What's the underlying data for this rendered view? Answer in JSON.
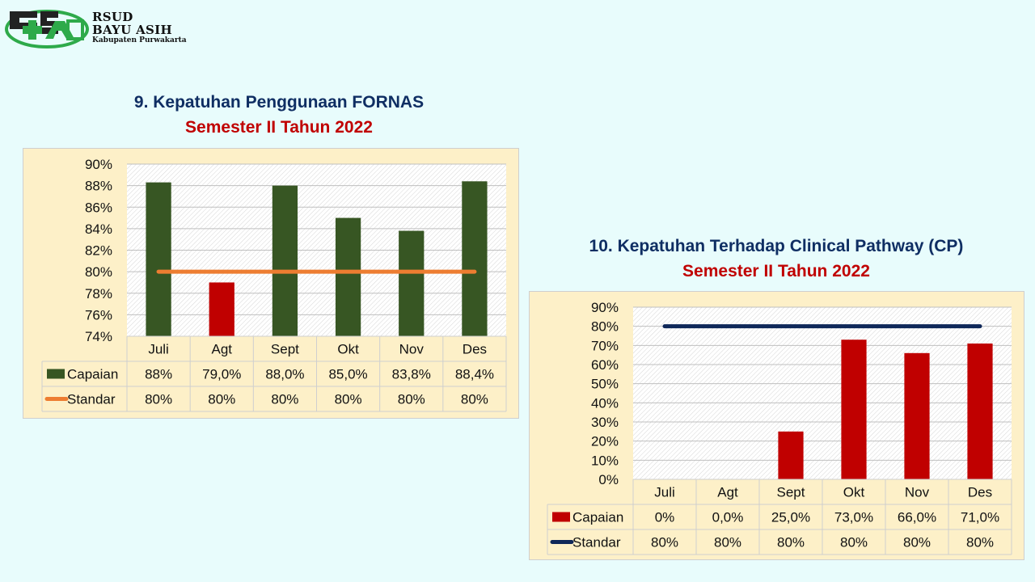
{
  "header": {
    "logo_text_line1": "RSUD",
    "logo_text_line2": "BAYU ASIH",
    "logo_text_line3": "Kabupaten Purwakarta"
  },
  "colors": {
    "background": "#e8fcfc",
    "title_blue": "#0f2e63",
    "title_red": "#c00000",
    "chart_panel": "#fdf0c8",
    "bar_green": "#375623",
    "bar_red": "#c00000",
    "standard_orange": "#ed7d31",
    "standard_navy": "#0f2859"
  },
  "chart_data": [
    {
      "type": "bar",
      "title": "9. Kepatuhan Penggunaan FORNAS",
      "subtitle": "Semester II Tahun 2022",
      "categories": [
        "Juli",
        "Agt",
        "Sept",
        "Okt",
        "Nov",
        "Des"
      ],
      "ylim": [
        74,
        90
      ],
      "yticks": [
        74,
        76,
        78,
        80,
        82,
        84,
        86,
        88,
        90
      ],
      "ytick_labels": [
        "74%",
        "76%",
        "78%",
        "80%",
        "82%",
        "84%",
        "86%",
        "88%",
        "90%"
      ],
      "grid": true,
      "legend_placement": "data-table-below",
      "series": [
        {
          "name": "Capaian",
          "kind": "bar",
          "values": [
            88.3,
            79.0,
            88.0,
            85.0,
            83.8,
            88.4
          ],
          "labels": [
            "88%",
            "79,0%",
            "88,0%",
            "85,0%",
            "83,8%",
            "88,4%"
          ],
          "bar_colors": [
            "#375623",
            "#c00000",
            "#375623",
            "#375623",
            "#375623",
            "#375623"
          ],
          "legend_color": "#375623"
        },
        {
          "name": "Standar",
          "kind": "line",
          "values": [
            80,
            80,
            80,
            80,
            80,
            80
          ],
          "labels": [
            "80%",
            "80%",
            "80%",
            "80%",
            "80%",
            "80%"
          ],
          "color": "#ed7d31"
        }
      ]
    },
    {
      "type": "bar",
      "title": "10. Kepatuhan Terhadap Clinical Pathway (CP)",
      "subtitle": "Semester II Tahun 2022",
      "categories": [
        "Juli",
        "Agt",
        "Sept",
        "Okt",
        "Nov",
        "Des"
      ],
      "ylim": [
        0,
        90
      ],
      "yticks": [
        0,
        10,
        20,
        30,
        40,
        50,
        60,
        70,
        80,
        90
      ],
      "ytick_labels": [
        "0%",
        "10%",
        "20%",
        "30%",
        "40%",
        "50%",
        "60%",
        "70%",
        "80%",
        "90%"
      ],
      "grid": true,
      "legend_placement": "data-table-below",
      "series": [
        {
          "name": "Capaian",
          "kind": "bar",
          "values": [
            0,
            0,
            25,
            73,
            66,
            71
          ],
          "labels": [
            "0%",
            "0,0%",
            "25,0%",
            "73,0%",
            "66,0%",
            "71,0%"
          ],
          "bar_colors": [
            "#c00000",
            "#c00000",
            "#c00000",
            "#c00000",
            "#c00000",
            "#c00000"
          ],
          "legend_color": "#c00000"
        },
        {
          "name": "Standar",
          "kind": "line",
          "values": [
            80,
            80,
            80,
            80,
            80,
            80
          ],
          "labels": [
            "80%",
            "80%",
            "80%",
            "80%",
            "80%",
            "80%"
          ],
          "color": "#0f2859"
        }
      ]
    }
  ]
}
